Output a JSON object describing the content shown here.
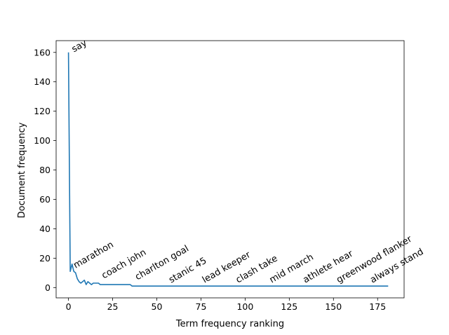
{
  "chart_data": {
    "type": "line",
    "title": "",
    "xlabel": "Term frequency ranking",
    "ylabel": "Document frequency",
    "xlim": [
      -7,
      190
    ],
    "ylim": [
      -7,
      168
    ],
    "xticks": [
      0,
      25,
      50,
      75,
      100,
      125,
      150,
      175
    ],
    "yticks": [
      0,
      20,
      40,
      60,
      80,
      100,
      120,
      140,
      160
    ],
    "grid": false,
    "line_color": "#1f77b4",
    "series": [
      {
        "x": [
          0,
          1,
          2,
          3,
          4,
          5,
          6,
          7,
          8,
          9,
          10,
          11,
          12,
          13,
          14,
          15,
          16,
          17,
          18,
          19,
          20,
          21,
          22,
          23,
          24,
          25,
          26,
          27,
          28,
          29,
          30,
          31,
          32,
          33,
          34,
          35,
          36,
          37,
          38,
          39,
          40,
          50,
          60,
          70,
          80,
          90,
          100,
          110,
          120,
          130,
          140,
          150,
          160,
          170,
          181
        ],
        "y": [
          160,
          11,
          16,
          11,
          10,
          6,
          4,
          3,
          4,
          5,
          2,
          4,
          3,
          2,
          3,
          3,
          3,
          3,
          2,
          2,
          2,
          2,
          2,
          2,
          2,
          2,
          2,
          2,
          2,
          2,
          2,
          2,
          2,
          2,
          2,
          2,
          1,
          1,
          1,
          1,
          1,
          1,
          1,
          1,
          1,
          1,
          1,
          1,
          1,
          1,
          1,
          1,
          1,
          1,
          1
        ]
      }
    ],
    "annotations": [
      {
        "text": "say",
        "x": 3,
        "y": 160
      },
      {
        "text": "marathon",
        "x": 4,
        "y": 13
      },
      {
        "text": "coach john",
        "x": 20,
        "y": 6
      },
      {
        "text": "charlton goal",
        "x": 39,
        "y": 5
      },
      {
        "text": "stanic 45",
        "x": 58,
        "y": 3
      },
      {
        "text": "lead keeper",
        "x": 77,
        "y": 3
      },
      {
        "text": "clash take",
        "x": 96,
        "y": 3
      },
      {
        "text": "mid march",
        "x": 115,
        "y": 3
      },
      {
        "text": "athlete hear",
        "x": 134,
        "y": 3
      },
      {
        "text": "greenwood flanker",
        "x": 153,
        "y": 3
      },
      {
        "text": "always stand",
        "x": 172,
        "y": 3
      }
    ]
  }
}
